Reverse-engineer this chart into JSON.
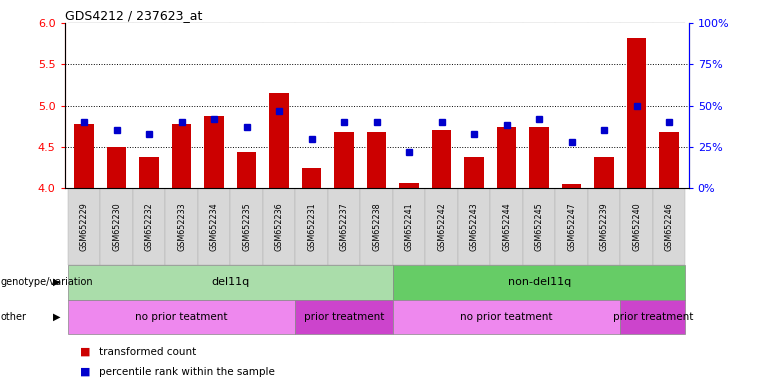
{
  "title": "GDS4212 / 237623_at",
  "samples": [
    "GSM652229",
    "GSM652230",
    "GSM652232",
    "GSM652233",
    "GSM652234",
    "GSM652235",
    "GSM652236",
    "GSM652231",
    "GSM652237",
    "GSM652238",
    "GSM652241",
    "GSM652242",
    "GSM652243",
    "GSM652244",
    "GSM652245",
    "GSM652247",
    "GSM652239",
    "GSM652240",
    "GSM652246"
  ],
  "red_values": [
    4.78,
    4.5,
    4.38,
    4.78,
    4.88,
    4.44,
    5.15,
    4.24,
    4.68,
    4.68,
    4.06,
    4.7,
    4.38,
    4.74,
    4.74,
    4.05,
    4.38,
    5.82,
    4.68
  ],
  "blue_values": [
    40,
    35,
    33,
    40,
    42,
    37,
    47,
    30,
    40,
    40,
    22,
    40,
    33,
    38,
    42,
    28,
    35,
    50,
    40
  ],
  "ylim_left": [
    4.0,
    6.0
  ],
  "ylim_right": [
    0,
    100
  ],
  "yticks_left": [
    4.0,
    4.5,
    5.0,
    5.5,
    6.0
  ],
  "yticks_right": [
    0,
    25,
    50,
    75,
    100
  ],
  "ytick_labels_right": [
    "0%",
    "25%",
    "50%",
    "75%",
    "100%"
  ],
  "hlines": [
    4.5,
    5.0,
    5.5
  ],
  "bar_color": "#cc0000",
  "dot_color": "#0000cc",
  "bar_width": 0.6,
  "baseline": 4.0,
  "xlim": [
    -0.6,
    18.6
  ],
  "genotype_groups": [
    {
      "label": "del11q",
      "start": 0,
      "end": 9,
      "color": "#aaddaa"
    },
    {
      "label": "non-del11q",
      "start": 10,
      "end": 18,
      "color": "#66cc66"
    }
  ],
  "treatment_groups": [
    {
      "label": "no prior teatment",
      "start": 0,
      "end": 6,
      "color": "#ee88ee"
    },
    {
      "label": "prior treatment",
      "start": 7,
      "end": 9,
      "color": "#cc44cc"
    },
    {
      "label": "no prior teatment",
      "start": 10,
      "end": 16,
      "color": "#ee88ee"
    },
    {
      "label": "prior treatment",
      "start": 17,
      "end": 18,
      "color": "#cc44cc"
    }
  ],
  "legend_items": [
    {
      "label": "transformed count",
      "color": "#cc0000",
      "marker": "s"
    },
    {
      "label": "percentile rank within the sample",
      "color": "#0000cc",
      "marker": "s"
    }
  ],
  "genotype_label": "genotype/variation",
  "other_label": "other",
  "col_bg_color": "#d8d8d8",
  "gap_color": "#ffffff"
}
